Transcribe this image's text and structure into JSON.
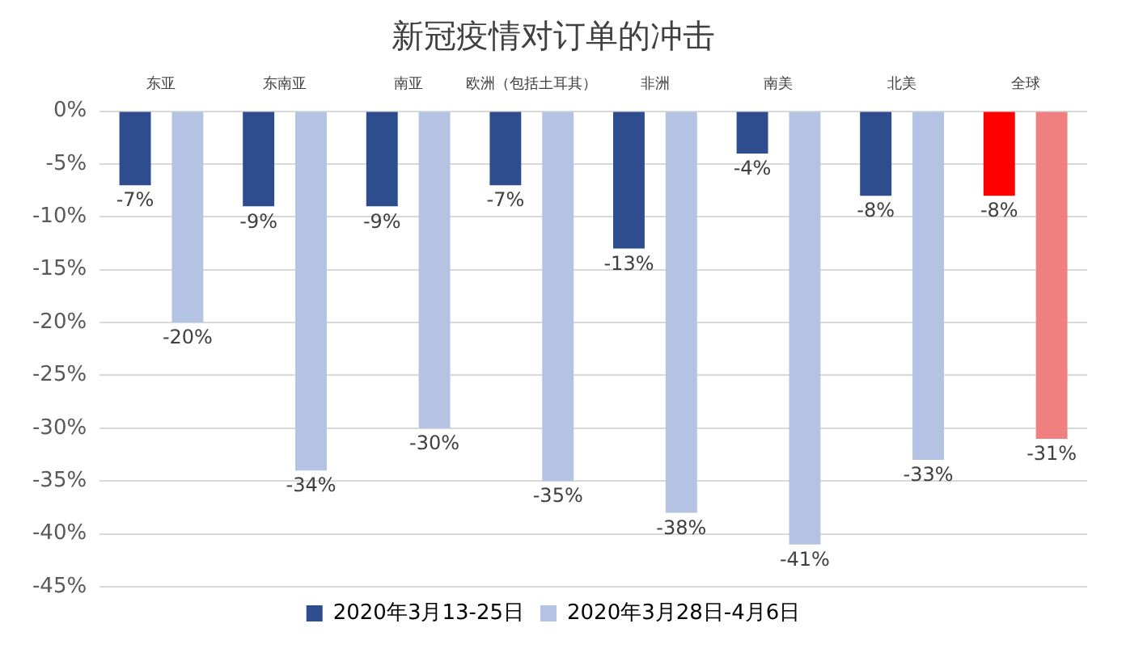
{
  "chart_data": {
    "type": "bar",
    "title": "新冠疫情对订单的冲击",
    "categories": [
      "东亚",
      "东南亚",
      "南亚",
      "欧洲（包括土耳其）",
      "非洲",
      "南美",
      "北美",
      "全球"
    ],
    "series": [
      {
        "name": "2020年3月13-25日",
        "color": "#2e4d8f",
        "colors": [
          "#2e4d8f",
          "#2e4d8f",
          "#2e4d8f",
          "#2e4d8f",
          "#2e4d8f",
          "#2e4d8f",
          "#2e4d8f",
          "#ff0000"
        ],
        "values": [
          -7,
          -9,
          -9,
          -7,
          -13,
          -4,
          -8,
          -8
        ],
        "value_labels": [
          "-7%",
          "-9%",
          "-9%",
          "-7%",
          "-13%",
          "-4%",
          "-8%",
          "-8%"
        ]
      },
      {
        "name": "2020年3月28日-4月6日",
        "color": "#b4c3e3",
        "colors": [
          "#b4c3e3",
          "#b4c3e3",
          "#b4c3e3",
          "#b4c3e3",
          "#b4c3e3",
          "#b4c3e3",
          "#b4c3e3",
          "#f08080"
        ],
        "values": [
          -20,
          -34,
          -30,
          -35,
          -38,
          -41,
          -33,
          -31
        ],
        "value_labels": [
          "-20%",
          "-34%",
          "-30%",
          "-35%",
          "-38%",
          "-41%",
          "-33%",
          "-31%"
        ]
      }
    ],
    "ylim": [
      -45,
      0
    ],
    "yticks": [
      {
        "value": 0,
        "label": "0%"
      },
      {
        "value": -5,
        "label": "-5%"
      },
      {
        "value": -10,
        "label": "-10%"
      },
      {
        "value": -15,
        "label": "-15%"
      },
      {
        "value": -20,
        "label": "-20%"
      },
      {
        "value": -25,
        "label": "-25%"
      },
      {
        "value": -30,
        "label": "-30%"
      },
      {
        "value": -35,
        "label": "-35%"
      },
      {
        "value": -40,
        "label": "-40%"
      },
      {
        "value": -45,
        "label": "-45%"
      }
    ],
    "grid": "y",
    "legend": "bottom"
  }
}
